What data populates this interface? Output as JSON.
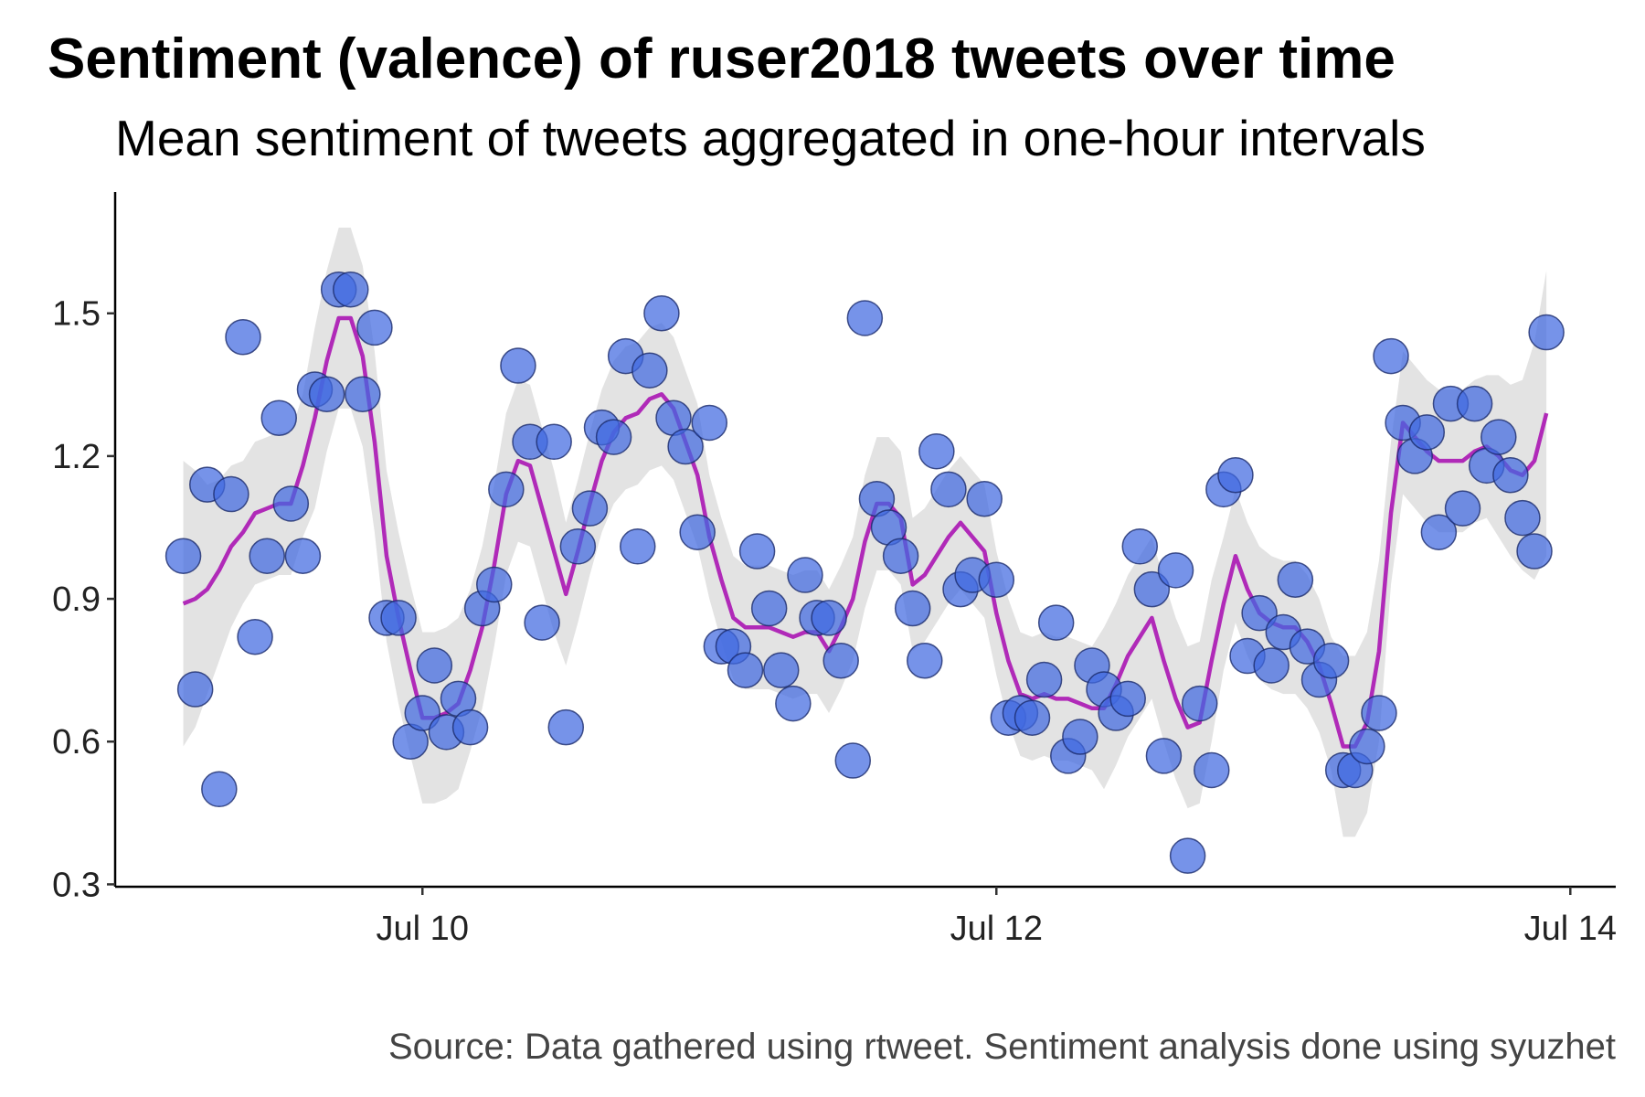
{
  "chart_data": {
    "type": "scatter",
    "title": "Sentiment (valence) of ruser2018 tweets over time",
    "subtitle": "Mean sentiment of tweets aggregated in one-hour intervals",
    "caption": "Source: Data gathered using rtweet. Sentiment analysis done using syuzhet",
    "xlim": [
      -1.7,
      123.8
    ],
    "xticks": [
      {
        "value": 24,
        "label": "Jul 10"
      },
      {
        "value": 72,
        "label": "Jul 12"
      },
      {
        "value": 120,
        "label": "Jul 14"
      }
    ],
    "ylim": [
      0.295,
      1.755
    ],
    "yticks": [
      0.3,
      0.6,
      0.9,
      1.2,
      1.5
    ],
    "color": "#4169e1",
    "x": [
      4,
      5,
      6,
      7,
      8,
      9,
      10,
      11,
      12,
      13,
      14,
      15,
      16,
      17,
      18,
      19,
      20,
      21,
      22,
      23,
      24,
      25,
      26,
      27,
      28,
      29,
      30,
      31,
      32,
      33,
      34,
      35,
      36,
      37,
      38,
      39,
      40,
      41,
      42,
      43,
      44,
      45,
      46,
      47,
      48,
      49,
      50,
      51,
      52,
      53,
      54,
      55,
      56,
      57,
      58,
      59,
      60,
      61,
      62,
      63,
      64,
      65,
      66,
      67,
      68,
      69,
      70,
      71,
      72,
      73,
      74,
      75,
      76,
      77,
      78,
      79,
      80,
      81,
      82,
      83,
      84,
      85,
      86,
      87,
      88,
      89,
      90,
      91,
      92,
      93,
      94,
      95,
      96,
      97,
      98,
      99,
      100,
      101,
      102,
      103,
      104,
      105,
      106,
      107,
      108,
      109,
      110,
      111,
      112,
      113,
      114,
      115,
      116,
      117,
      118
    ],
    "values": [
      0.99,
      0.71,
      1.14,
      0.5,
      1.12,
      1.45,
      0.82,
      0.99,
      1.28,
      1.1,
      0.99,
      1.34,
      1.33,
      1.55,
      1.55,
      1.33,
      1.47,
      0.86,
      0.86,
      0.6,
      0.66,
      0.76,
      0.62,
      0.69,
      0.63,
      0.88,
      0.93,
      1.13,
      1.39,
      1.23,
      0.85,
      1.23,
      0.63,
      1.01,
      1.09,
      1.26,
      1.24,
      1.41,
      1.01,
      1.38,
      1.5,
      1.28,
      1.22,
      1.04,
      1.27,
      0.8,
      0.8,
      0.75,
      1.0,
      0.88,
      0.75,
      0.68,
      0.95,
      0.86,
      0.86,
      0.77,
      0.56,
      1.49,
      1.11,
      1.05,
      0.99,
      0.88,
      0.77,
      1.21,
      1.13,
      0.92,
      0.95,
      1.11,
      0.94,
      0.65,
      0.66,
      0.65,
      0.73,
      0.85,
      0.57,
      0.61,
      0.76,
      0.71,
      0.66,
      0.69,
      1.01,
      0.92,
      0.57,
      0.96,
      0.36,
      0.68,
      0.54,
      1.13,
      1.16,
      0.78,
      0.87,
      0.76,
      0.83,
      0.94,
      0.8,
      0.73,
      0.77,
      0.54,
      0.54,
      0.59,
      0.66,
      1.41,
      1.27,
      1.2,
      1.25,
      1.04,
      1.31,
      1.09,
      1.31,
      1.18,
      1.24,
      1.16,
      1.07,
      1.0,
      1.46
    ],
    "trend": {
      "color": "#b02ab8",
      "band_color": "#e3e3e3",
      "values": [
        0.89,
        0.9,
        0.92,
        0.96,
        1.01,
        1.04,
        1.08,
        1.09,
        1.1,
        1.1,
        1.18,
        1.28,
        1.4,
        1.49,
        1.49,
        1.41,
        1.23,
        0.99,
        0.86,
        0.75,
        0.65,
        0.65,
        0.66,
        0.68,
        0.75,
        0.84,
        0.97,
        1.12,
        1.19,
        1.18,
        1.09,
        1.0,
        0.91,
        1.0,
        1.1,
        1.19,
        1.25,
        1.28,
        1.29,
        1.32,
        1.33,
        1.3,
        1.23,
        1.16,
        1.03,
        0.94,
        0.86,
        0.84,
        0.84,
        0.84,
        0.83,
        0.82,
        0.83,
        0.83,
        0.79,
        0.84,
        0.9,
        1.02,
        1.1,
        1.1,
        1.07,
        0.93,
        0.95,
        0.99,
        1.03,
        1.06,
        1.03,
        1.0,
        0.87,
        0.77,
        0.7,
        0.69,
        0.7,
        0.69,
        0.69,
        0.68,
        0.67,
        0.67,
        0.72,
        0.78,
        0.82,
        0.86,
        0.77,
        0.69,
        0.63,
        0.64,
        0.77,
        0.89,
        0.99,
        0.92,
        0.87,
        0.85,
        0.84,
        0.84,
        0.81,
        0.76,
        0.68,
        0.59,
        0.59,
        0.64,
        0.79,
        1.08,
        1.27,
        1.24,
        1.21,
        1.19,
        1.19,
        1.19,
        1.21,
        1.22,
        1.2,
        1.17,
        1.16,
        1.19,
        1.29
      ],
      "lower": [
        0.59,
        0.63,
        0.7,
        0.77,
        0.84,
        0.89,
        0.93,
        0.94,
        0.95,
        0.95,
        1.03,
        1.09,
        1.21,
        1.3,
        1.3,
        1.22,
        1.04,
        0.81,
        0.68,
        0.57,
        0.47,
        0.47,
        0.48,
        0.5,
        0.58,
        0.67,
        0.8,
        0.95,
        1.02,
        1.01,
        0.92,
        0.83,
        0.76,
        0.85,
        0.95,
        1.04,
        1.1,
        1.13,
        1.14,
        1.17,
        1.18,
        1.15,
        1.08,
        1.01,
        0.9,
        0.81,
        0.73,
        0.71,
        0.71,
        0.71,
        0.7,
        0.69,
        0.7,
        0.7,
        0.66,
        0.71,
        0.77,
        0.88,
        0.96,
        0.96,
        0.93,
        0.79,
        0.81,
        0.85,
        0.89,
        0.92,
        0.89,
        0.86,
        0.74,
        0.64,
        0.57,
        0.56,
        0.57,
        0.56,
        0.56,
        0.55,
        0.54,
        0.5,
        0.55,
        0.61,
        0.65,
        0.69,
        0.6,
        0.52,
        0.46,
        0.47,
        0.6,
        0.75,
        0.85,
        0.78,
        0.73,
        0.71,
        0.7,
        0.7,
        0.67,
        0.62,
        0.54,
        0.4,
        0.4,
        0.45,
        0.6,
        0.93,
        1.12,
        1.09,
        1.06,
        1.04,
        1.04,
        1.04,
        1.06,
        1.07,
        1.03,
        0.99,
        0.96,
        0.94,
        0.99
      ],
      "upper": [
        1.19,
        1.17,
        1.14,
        1.15,
        1.18,
        1.19,
        1.23,
        1.24,
        1.25,
        1.25,
        1.33,
        1.47,
        1.59,
        1.68,
        1.68,
        1.6,
        1.42,
        1.17,
        1.04,
        0.93,
        0.83,
        0.83,
        0.84,
        0.86,
        0.92,
        1.01,
        1.14,
        1.29,
        1.36,
        1.35,
        1.26,
        1.17,
        1.06,
        1.15,
        1.25,
        1.34,
        1.4,
        1.43,
        1.44,
        1.47,
        1.48,
        1.45,
        1.38,
        1.31,
        1.16,
        1.07,
        0.99,
        0.97,
        0.97,
        0.97,
        0.96,
        0.95,
        0.96,
        0.96,
        0.92,
        0.97,
        1.03,
        1.16,
        1.24,
        1.24,
        1.21,
        1.07,
        1.09,
        1.13,
        1.17,
        1.2,
        1.17,
        1.14,
        1.0,
        0.9,
        0.83,
        0.82,
        0.83,
        0.82,
        0.82,
        0.81,
        0.8,
        0.84,
        0.89,
        0.95,
        0.99,
        1.03,
        0.94,
        0.86,
        0.8,
        0.81,
        0.94,
        1.03,
        1.13,
        1.06,
        1.01,
        0.99,
        0.98,
        0.98,
        0.95,
        0.9,
        0.82,
        0.78,
        0.78,
        0.83,
        0.98,
        1.23,
        1.42,
        1.39,
        1.36,
        1.34,
        1.34,
        1.34,
        1.36,
        1.37,
        1.37,
        1.35,
        1.36,
        1.44,
        1.59
      ]
    }
  }
}
